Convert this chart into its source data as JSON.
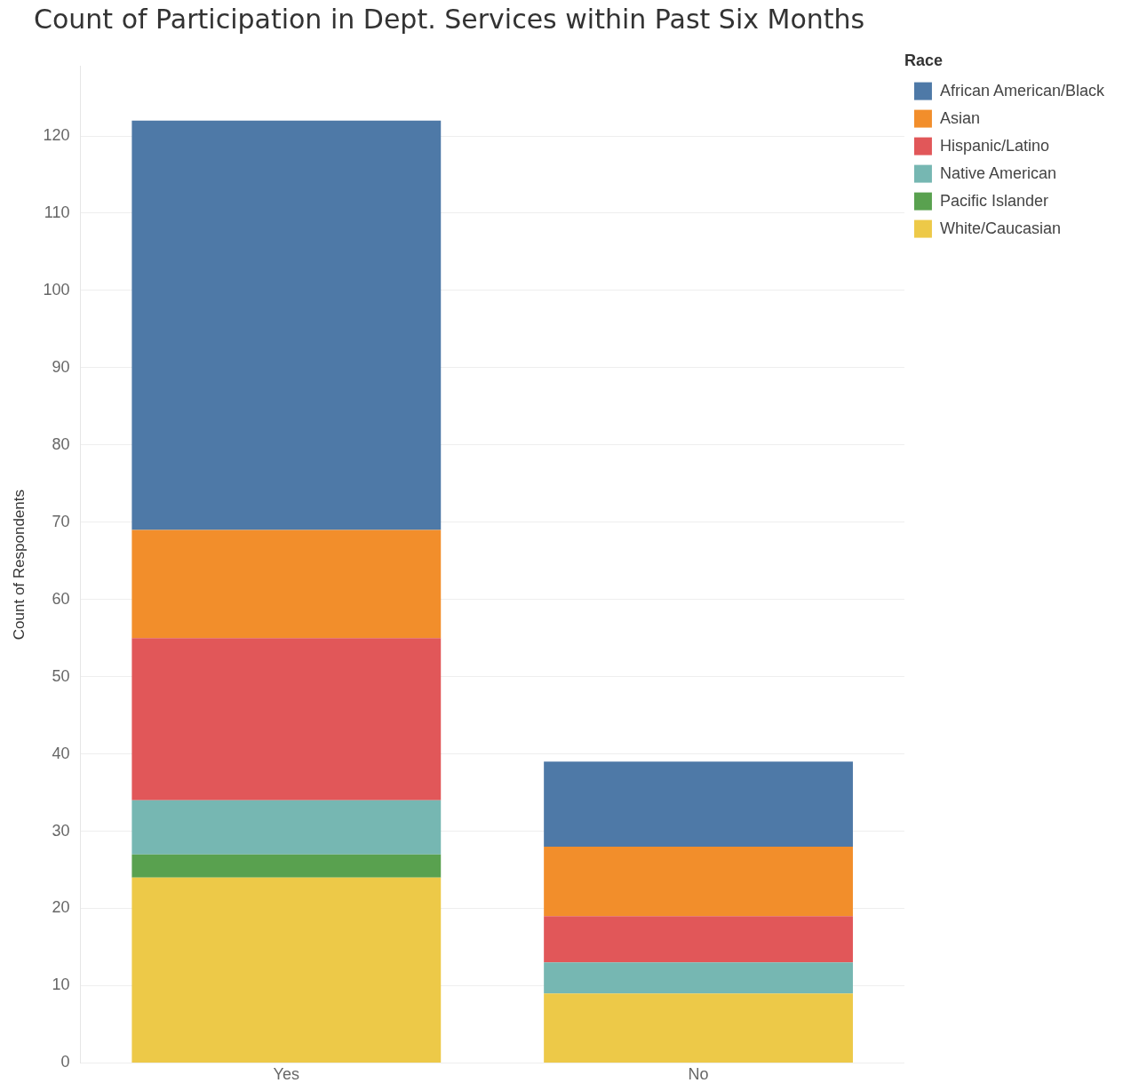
{
  "chart_data": {
    "type": "bar",
    "title": "Count of Participation in Dept. Services within Past Six Months",
    "ylabel": "Count of Respondents",
    "legend_title": "Race",
    "categories": [
      "Yes",
      "No"
    ],
    "stacked": true,
    "series": [
      {
        "name": "White/Caucasian",
        "color": "#edc948",
        "values": [
          24,
          9
        ]
      },
      {
        "name": "Pacific Islander",
        "color": "#59a14f",
        "values": [
          3,
          0
        ]
      },
      {
        "name": "Native American",
        "color": "#76b7b2",
        "values": [
          7,
          4
        ]
      },
      {
        "name": "Hispanic/Latino",
        "color": "#e15759",
        "values": [
          21,
          6
        ]
      },
      {
        "name": "Asian",
        "color": "#f28e2b",
        "values": [
          14,
          9
        ]
      },
      {
        "name": "African American/Black",
        "color": "#4e79a7",
        "values": [
          53,
          11
        ]
      }
    ],
    "ylim": [
      0,
      129
    ],
    "yticks": [
      0,
      10,
      20,
      30,
      40,
      50,
      60,
      70,
      80,
      90,
      100,
      110,
      120
    ],
    "grid": "y",
    "legend": "top right"
  }
}
